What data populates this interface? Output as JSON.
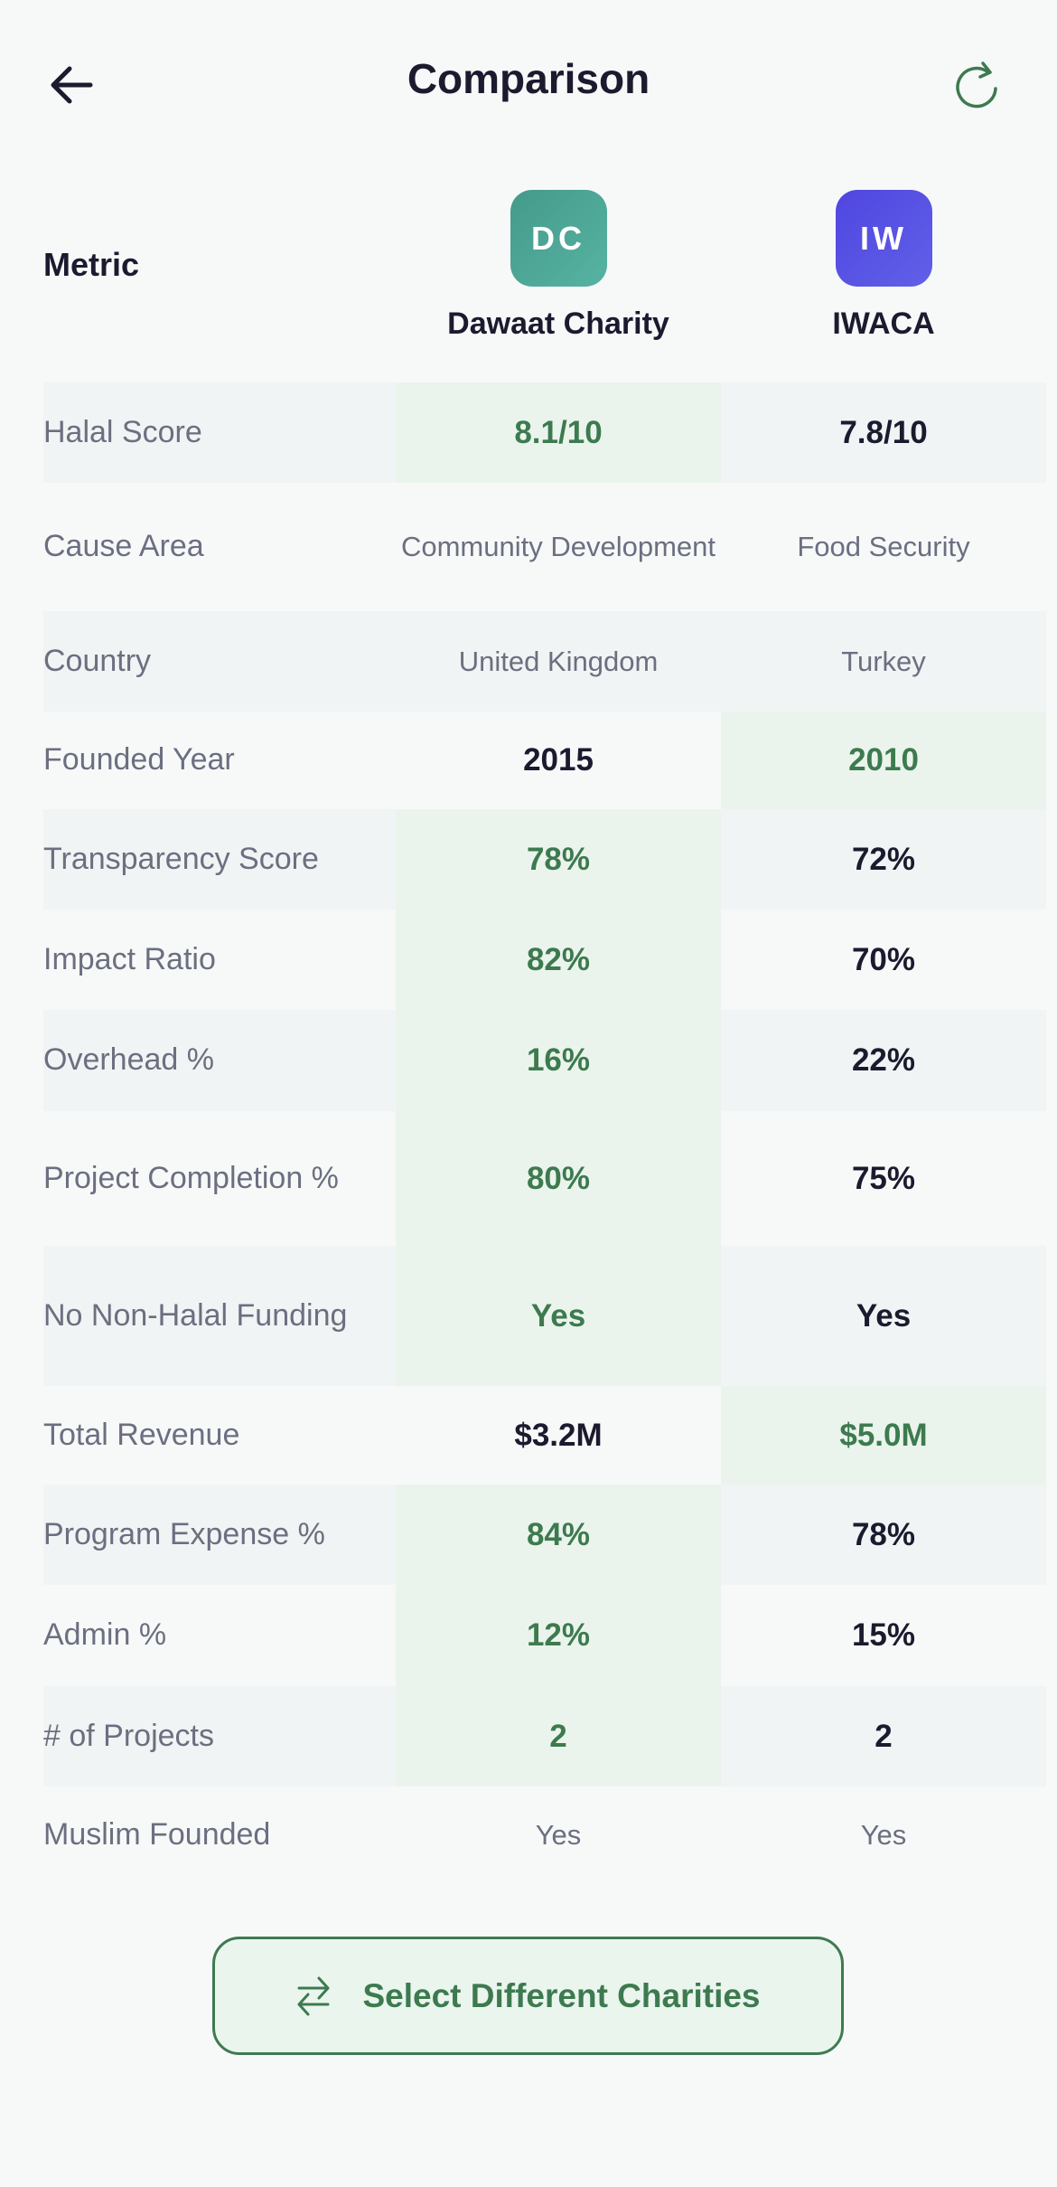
{
  "header": {
    "title": "Comparison",
    "back_icon": "arrow-left-icon",
    "refresh_icon": "refresh-icon"
  },
  "columns": {
    "metric_label": "Metric",
    "charities": [
      {
        "initials": "DC",
        "name": "Dawaat Charity",
        "color": "#4fa898"
      },
      {
        "initials": "IW",
        "name": "IWACA",
        "color": "#5552e4"
      }
    ]
  },
  "colors": {
    "accent": "#3d7a4f",
    "highlight_bg": "#eaf4ec",
    "label": "#6b6f80",
    "text": "#1b1b2f"
  },
  "rows": [
    {
      "label": "Halal Score",
      "a": "8.1/10",
      "b": "7.8/10",
      "winner": "a",
      "style": "bold"
    },
    {
      "label": "Cause Area",
      "a": "Community Development",
      "b": "Food Security",
      "winner": "",
      "style": "muted"
    },
    {
      "label": "Country",
      "a": "United Kingdom",
      "b": "Turkey",
      "winner": "",
      "style": "muted"
    },
    {
      "label": "Founded Year",
      "a": "2015",
      "b": "2010",
      "winner": "b",
      "style": "bold"
    },
    {
      "label": "Transparency Score",
      "a": "78%",
      "b": "72%",
      "winner": "a",
      "style": "bold"
    },
    {
      "label": "Impact Ratio",
      "a": "82%",
      "b": "70%",
      "winner": "a",
      "style": "bold"
    },
    {
      "label": "Overhead %",
      "a": "16%",
      "b": "22%",
      "winner": "a",
      "style": "bold"
    },
    {
      "label": "Project Completion %",
      "a": "80%",
      "b": "75%",
      "winner": "a",
      "style": "bold"
    },
    {
      "label": "No Non-Halal Funding",
      "a": "Yes",
      "b": "Yes",
      "winner": "a",
      "style": "bold"
    },
    {
      "label": "Total Revenue",
      "a": "$3.2M",
      "b": "$5.0M",
      "winner": "b",
      "style": "bold"
    },
    {
      "label": "Program Expense %",
      "a": "84%",
      "b": "78%",
      "winner": "a",
      "style": "bold"
    },
    {
      "label": "Admin %",
      "a": "12%",
      "b": "15%",
      "winner": "a",
      "style": "bold"
    },
    {
      "label": "# of Projects",
      "a": "2",
      "b": "2",
      "winner": "a",
      "style": "bold"
    },
    {
      "label": "Muslim Founded",
      "a": "Yes",
      "b": "Yes",
      "winner": "",
      "style": "muted"
    }
  ],
  "footer": {
    "select_button_label": "Select Different Charities",
    "select_icon": "swap-arrows-icon"
  }
}
